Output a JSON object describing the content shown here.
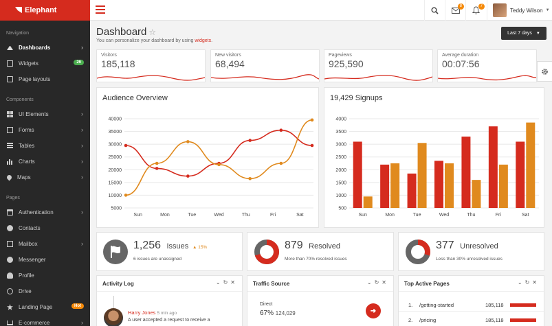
{
  "brand": {
    "name": "Elephant"
  },
  "sidebar": {
    "sections": [
      "Navigation",
      "Components",
      "Pages"
    ],
    "nav": [
      {
        "label": "Dashboards",
        "icon": "home-icon"
      },
      {
        "label": "Widgets",
        "icon": "widgets-icon",
        "badge": "26",
        "badge_color": "#4caf50"
      },
      {
        "label": "Page layouts",
        "icon": "page-icon"
      }
    ],
    "components": [
      {
        "label": "UI Elements",
        "icon": "grid-icon"
      },
      {
        "label": "Forms",
        "icon": "pencil-icon"
      },
      {
        "label": "Tables",
        "icon": "table-icon"
      },
      {
        "label": "Charts",
        "icon": "chart-icon"
      },
      {
        "label": "Maps",
        "icon": "map-pin-icon"
      }
    ],
    "pages": [
      {
        "label": "Authentication",
        "icon": "lock-icon"
      },
      {
        "label": "Contacts",
        "icon": "users-icon"
      },
      {
        "label": "Mailbox",
        "icon": "mail-icon"
      },
      {
        "label": "Messenger",
        "icon": "chat-icon"
      },
      {
        "label": "Profile",
        "icon": "user-icon"
      },
      {
        "label": "Drive",
        "icon": "drive-icon"
      },
      {
        "label": "Landing Page",
        "icon": "star-icon",
        "badge": "Hot",
        "badge_color": "#f58a0a"
      },
      {
        "label": "E-commerce",
        "icon": "cart-icon"
      }
    ]
  },
  "header": {
    "mail_count": "8",
    "notif_count": "7",
    "user_name": "Teddy Wilson"
  },
  "page": {
    "title": "Dashboard",
    "subtitle_prefix": "You can personalize your dashboard by using ",
    "subtitle_link": "widgets",
    "subtitle_suffix": ".",
    "range_label": "Last 7 days"
  },
  "stats": [
    {
      "label": "Visitors",
      "value": "185,118"
    },
    {
      "label": "New visitors",
      "value": "68,494"
    },
    {
      "label": "Pageviews",
      "value": "925,590"
    },
    {
      "label": "Average duration",
      "value": "00:07:56"
    }
  ],
  "audience": {
    "title": "Audience Overview"
  },
  "signups": {
    "title": "19,429 Signups"
  },
  "chart_data": [
    {
      "type": "line",
      "title": "Audience Overview",
      "categories": [
        "Sun",
        "Mon",
        "Tue",
        "Wed",
        "Thu",
        "Fri",
        "Sat"
      ],
      "ylim": [
        5000,
        40000
      ],
      "yticks": [
        5000,
        10000,
        15000,
        20000,
        25000,
        30000,
        35000,
        40000
      ],
      "grid": true,
      "series": [
        {
          "color": "#d52b1e",
          "values": [
            29500,
            20500,
            17500,
            22500,
            31500,
            35500,
            29500
          ]
        },
        {
          "color": "#e08a1e",
          "values": [
            10000,
            22500,
            31000,
            22000,
            16500,
            22500,
            39500
          ]
        }
      ]
    },
    {
      "type": "bar",
      "title": "19,429 Signups",
      "categories": [
        "Sun",
        "Mon",
        "Tue",
        "Wed",
        "Thu",
        "Fri",
        "Sat"
      ],
      "ylim": [
        500,
        4000
      ],
      "yticks": [
        500,
        1000,
        1500,
        2000,
        2500,
        3000,
        3500,
        4000
      ],
      "grid": true,
      "series": [
        {
          "color": "#d52b1e",
          "values": [
            3100,
            2200,
            1850,
            2350,
            3300,
            3700,
            3100
          ]
        },
        {
          "color": "#e08a1e",
          "values": [
            950,
            2250,
            3050,
            2250,
            1600,
            2200,
            3850
          ]
        }
      ]
    }
  ],
  "summary": [
    {
      "value": "1,256",
      "unit": "Issues",
      "trend": "15%",
      "desc": "6 issues are unassigned",
      "icon": "flag-icon"
    },
    {
      "value": "879",
      "unit": "Resolved",
      "desc": "More than 70% resolved issues",
      "fraction": 0.7
    },
    {
      "value": "377",
      "unit": "Unresolved",
      "desc": "Less than 30% unresolved issues",
      "fraction": 0.3
    }
  ],
  "widgets": {
    "activity": {
      "title": "Activity Log",
      "user": "Harry Jones",
      "time": "5 min ago",
      "text": "A user accepted a request to receive a"
    },
    "traffic": {
      "title": "Traffic Source",
      "label": "Direct",
      "percent": "67%",
      "count": "124,029"
    },
    "pages": {
      "title": "Top Active Pages",
      "rows": [
        {
          "rank": "1.",
          "path": "/getting-started",
          "count": "185,118"
        },
        {
          "rank": "2.",
          "path": "/pricing",
          "count": "185,118"
        }
      ]
    }
  },
  "colors": {
    "accent": "#d52b1e",
    "orange": "#e08a1e",
    "sidebar": "#282828"
  }
}
